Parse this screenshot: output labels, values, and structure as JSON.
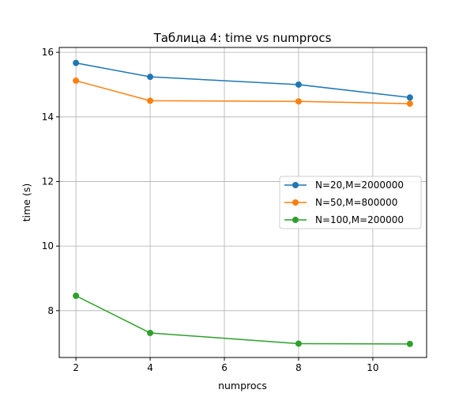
{
  "chart_data": {
    "type": "line",
    "title": "Таблица 4: time vs numprocs",
    "xlabel": "numprocs",
    "ylabel": "time (s)",
    "xlim": [
      1.55,
      11.45
    ],
    "ylim": [
      6.55,
      16.15
    ],
    "xticks": [
      2,
      4,
      6,
      8,
      10
    ],
    "yticks": [
      8,
      10,
      12,
      14,
      16
    ],
    "grid": true,
    "legend_position": "center-right",
    "x": [
      2,
      4,
      8,
      11
    ],
    "series": [
      {
        "name": "N=20,M=2000000",
        "color": "#1f77b4",
        "values": [
          15.67,
          15.24,
          15.0,
          14.6
        ]
      },
      {
        "name": "N=50,M=800000",
        "color": "#ff7f0e",
        "values": [
          15.12,
          14.5,
          14.48,
          14.41
        ]
      },
      {
        "name": "N=100,M=200000",
        "color": "#2ca02c",
        "values": [
          8.46,
          7.31,
          6.98,
          6.97
        ]
      }
    ]
  }
}
